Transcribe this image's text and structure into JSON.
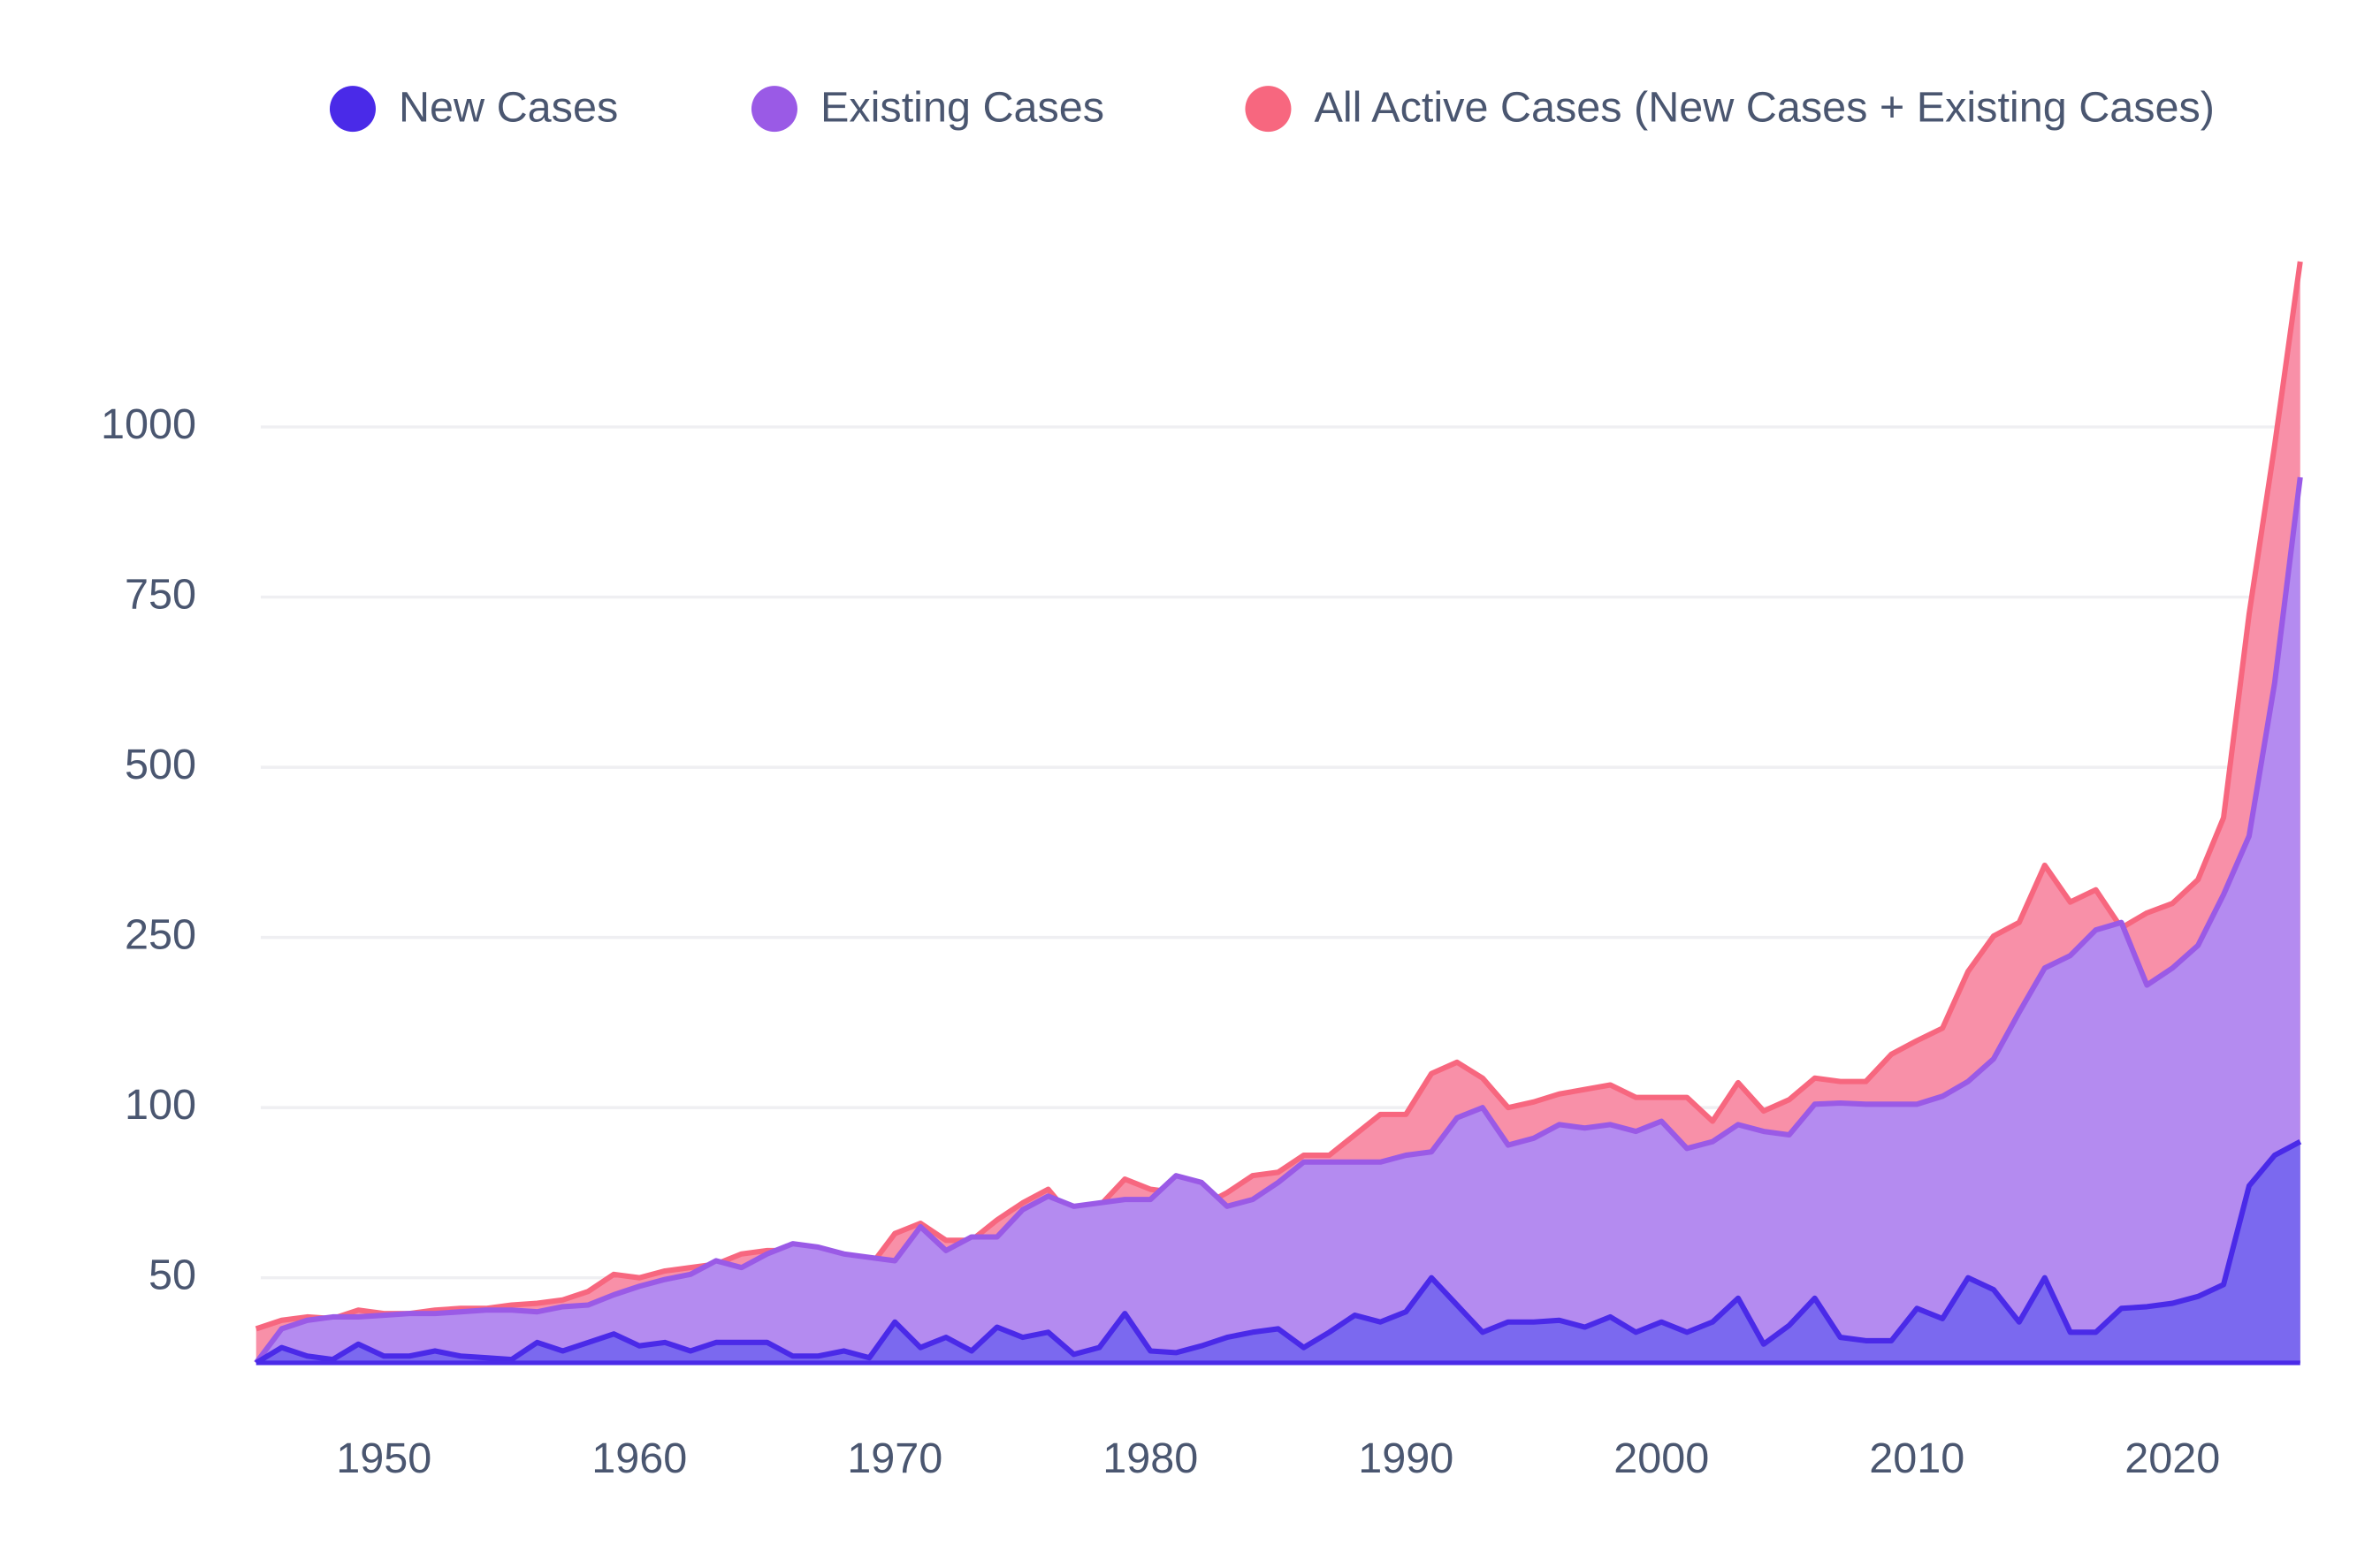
{
  "chart_data": {
    "type": "area",
    "x": [
      1945,
      1946,
      1947,
      1948,
      1949,
      1950,
      1951,
      1952,
      1953,
      1954,
      1955,
      1956,
      1957,
      1958,
      1959,
      1960,
      1961,
      1962,
      1963,
      1964,
      1965,
      1966,
      1967,
      1968,
      1969,
      1970,
      1971,
      1972,
      1973,
      1974,
      1975,
      1976,
      1977,
      1978,
      1979,
      1980,
      1981,
      1982,
      1983,
      1984,
      1985,
      1986,
      1987,
      1988,
      1989,
      1990,
      1991,
      1992,
      1993,
      1994,
      1995,
      1996,
      1997,
      1998,
      1999,
      2000,
      2001,
      2002,
      2003,
      2004,
      2005,
      2006,
      2007,
      2008,
      2009,
      2010,
      2011,
      2012,
      2013,
      2014,
      2015,
      2016,
      2017,
      2018,
      2019,
      2020,
      2021,
      2022,
      2023,
      2024,
      2025
    ],
    "series": [
      {
        "name": "New Cases",
        "color": "#4a2ae8",
        "values": [
          0,
          9,
          4,
          2,
          11,
          4,
          4,
          7,
          4,
          3,
          2,
          12,
          7,
          12,
          17,
          10,
          12,
          7,
          12,
          12,
          12,
          4,
          4,
          7,
          3,
          24,
          9,
          15,
          7,
          21,
          15,
          18,
          5,
          9,
          29,
          7,
          6,
          10,
          15,
          18,
          20,
          9,
          18,
          28,
          24,
          30,
          50,
          34,
          18,
          24,
          24,
          25,
          21,
          27,
          18,
          24,
          18,
          24,
          38,
          11,
          22,
          38,
          15,
          13,
          13,
          32,
          26,
          50,
          43,
          24,
          50,
          18,
          18,
          32,
          33,
          35,
          39,
          46,
          77,
          86,
          90
        ]
      },
      {
        "name": "Existing Cases",
        "color": "#9a5ae6",
        "values": [
          0,
          20,
          25,
          27,
          27,
          28,
          29,
          29,
          30,
          31,
          31,
          30,
          33,
          34,
          40,
          45,
          49,
          51,
          55,
          53,
          57,
          60,
          59,
          57,
          56,
          55,
          65,
          58,
          62,
          62,
          70,
          74,
          71,
          72,
          73,
          73,
          80,
          78,
          71,
          73,
          78,
          84,
          84,
          84,
          84,
          86,
          87,
          97,
          100,
          89,
          91,
          95,
          94,
          95,
          93,
          96,
          88,
          90,
          95,
          93,
          92,
          103,
          104,
          103,
          103,
          103,
          110,
          123,
          143,
          184,
          223,
          234,
          261,
          272,
          208,
          223,
          243,
          313,
          399,
          624,
          926
        ]
      },
      {
        "name": "All Active Cases (New Cases + Existing Cases)",
        "color": "#f7677f",
        "values": [
          20,
          25,
          27,
          26,
          31,
          29,
          29,
          31,
          32,
          32,
          34,
          35,
          37,
          42,
          51,
          50,
          52,
          53,
          54,
          57,
          58,
          58,
          57,
          55,
          53,
          63,
          66,
          61,
          61,
          67,
          72,
          76,
          67,
          71,
          79,
          76,
          75,
          71,
          75,
          80,
          81,
          86,
          86,
          92,
          98,
          98,
          130,
          140,
          126,
          100,
          105,
          112,
          116,
          120,
          109,
          109,
          109,
          96,
          122,
          99,
          107,
          126,
          123,
          123,
          147,
          159,
          170,
          220,
          252,
          272,
          356,
          302,
          320,
          264,
          286,
          300,
          335,
          426,
          725,
          973,
          1243
        ]
      }
    ],
    "xlim": [
      1945,
      2025
    ],
    "xticks": [
      1950,
      1960,
      1970,
      1980,
      1990,
      2000,
      2010,
      2020
    ],
    "ylim": [
      0,
      1250
    ],
    "yticks": [
      50,
      100,
      250,
      500,
      750,
      1000
    ],
    "grid": true,
    "legend": "top"
  }
}
